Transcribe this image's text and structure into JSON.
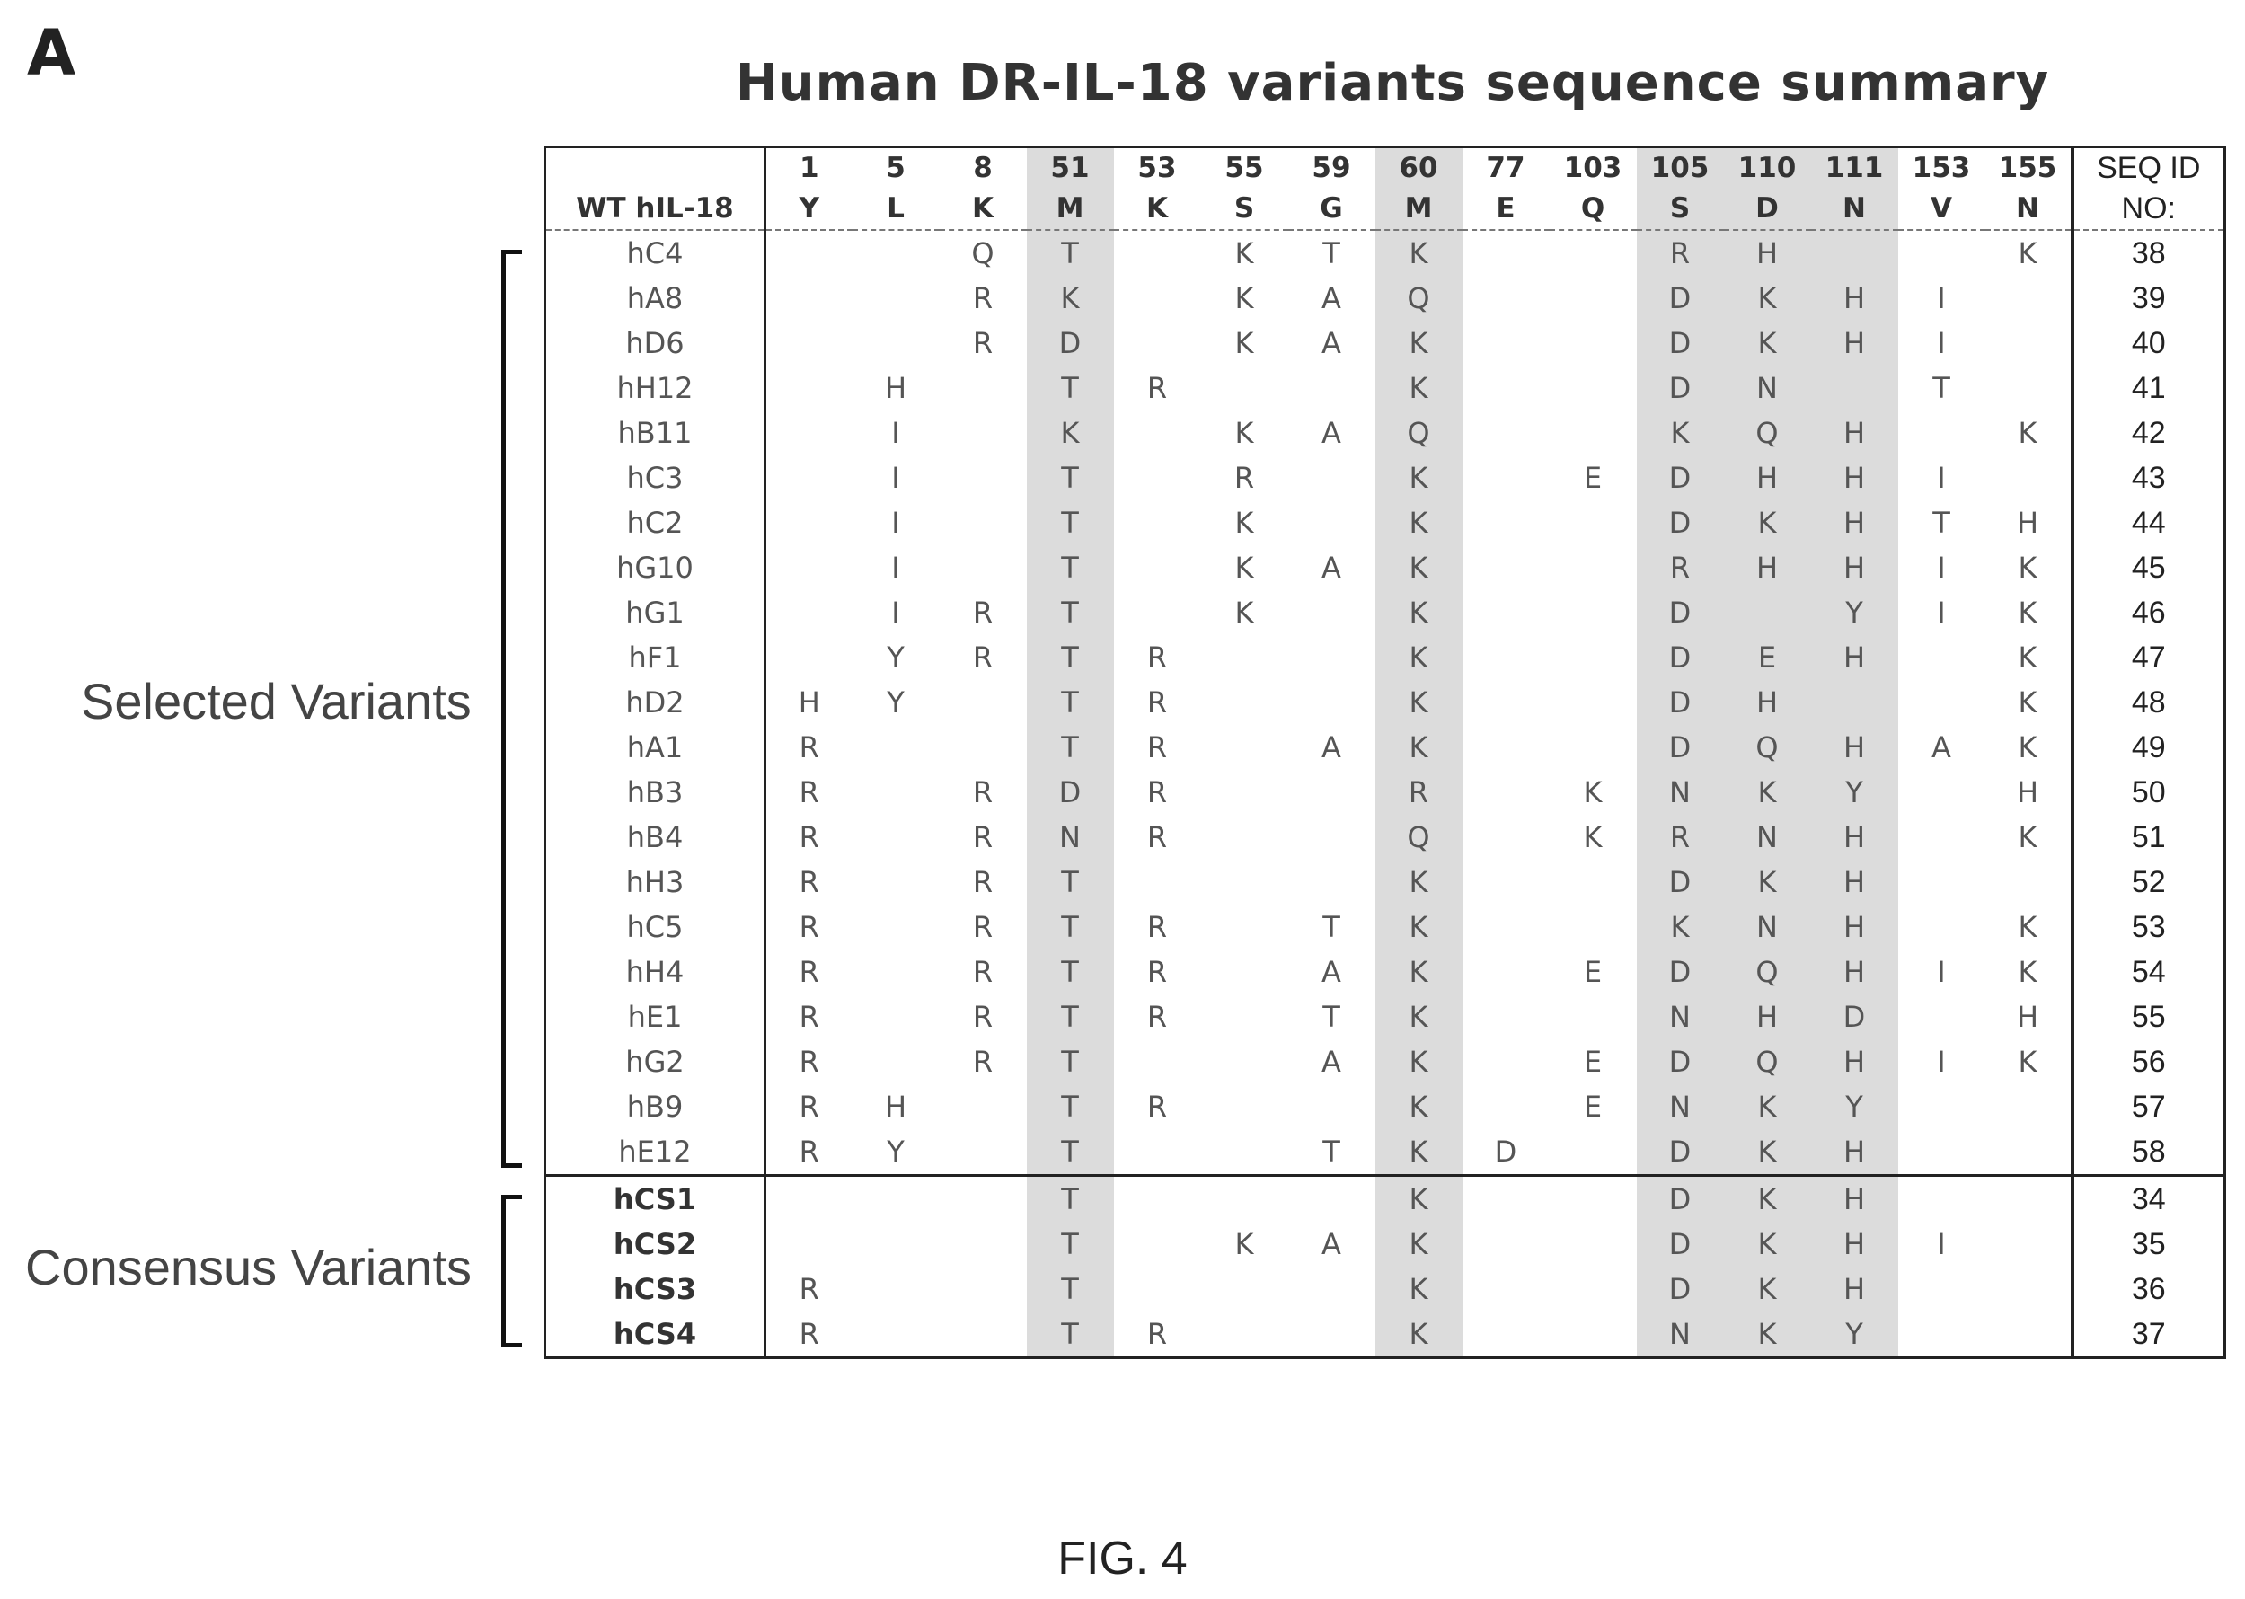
{
  "panel_label": "A",
  "title": "Human DR-IL-18 variants sequence summary",
  "wt_label": "WT hIL-18",
  "seq_id_header": [
    "SEQ ID",
    "NO:"
  ],
  "columns": [
    {
      "pos": "1",
      "wt": "Y",
      "shaded": false
    },
    {
      "pos": "5",
      "wt": "L",
      "shaded": false
    },
    {
      "pos": "8",
      "wt": "K",
      "shaded": false
    },
    {
      "pos": "51",
      "wt": "M",
      "shaded": true
    },
    {
      "pos": "53",
      "wt": "K",
      "shaded": false
    },
    {
      "pos": "55",
      "wt": "S",
      "shaded": false
    },
    {
      "pos": "59",
      "wt": "G",
      "shaded": false
    },
    {
      "pos": "60",
      "wt": "M",
      "shaded": true
    },
    {
      "pos": "77",
      "wt": "E",
      "shaded": false
    },
    {
      "pos": "103",
      "wt": "Q",
      "shaded": false
    },
    {
      "pos": "105",
      "wt": "S",
      "shaded": true
    },
    {
      "pos": "110",
      "wt": "D",
      "shaded": true
    },
    {
      "pos": "111",
      "wt": "N",
      "shaded": true
    },
    {
      "pos": "153",
      "wt": "V",
      "shaded": false
    },
    {
      "pos": "155",
      "wt": "N",
      "shaded": false
    }
  ],
  "groups": [
    {
      "label": "Selected Variants",
      "type": "selected"
    },
    {
      "label": "Consensus Variants",
      "type": "consensus"
    }
  ],
  "rows": [
    {
      "name": "hC4",
      "group": "selected",
      "seq_id": "38",
      "cells": [
        "",
        "",
        "Q",
        "T",
        "",
        "K",
        "T",
        "K",
        "",
        "",
        "R",
        "H",
        "",
        "",
        "K"
      ]
    },
    {
      "name": "hA8",
      "group": "selected",
      "seq_id": "39",
      "cells": [
        "",
        "",
        "R",
        "K",
        "",
        "K",
        "A",
        "Q",
        "",
        "",
        "D",
        "K",
        "H",
        "I",
        ""
      ]
    },
    {
      "name": "hD6",
      "group": "selected",
      "seq_id": "40",
      "cells": [
        "",
        "",
        "R",
        "D",
        "",
        "K",
        "A",
        "K",
        "",
        "",
        "D",
        "K",
        "H",
        "I",
        ""
      ]
    },
    {
      "name": "hH12",
      "group": "selected",
      "seq_id": "41",
      "cells": [
        "",
        "H",
        "",
        "T",
        "R",
        "",
        "",
        "K",
        "",
        "",
        "D",
        "N",
        "",
        "T",
        ""
      ]
    },
    {
      "name": "hB11",
      "group": "selected",
      "seq_id": "42",
      "cells": [
        "",
        "I",
        "",
        "K",
        "",
        "K",
        "A",
        "Q",
        "",
        "",
        "K",
        "Q",
        "H",
        "",
        "K"
      ]
    },
    {
      "name": "hC3",
      "group": "selected",
      "seq_id": "43",
      "cells": [
        "",
        "I",
        "",
        "T",
        "",
        "R",
        "",
        "K",
        "",
        "E",
        "D",
        "H",
        "H",
        "I",
        ""
      ]
    },
    {
      "name": "hC2",
      "group": "selected",
      "seq_id": "44",
      "cells": [
        "",
        "I",
        "",
        "T",
        "",
        "K",
        "",
        "K",
        "",
        "",
        "D",
        "K",
        "H",
        "T",
        "H"
      ]
    },
    {
      "name": "hG10",
      "group": "selected",
      "seq_id": "45",
      "cells": [
        "",
        "I",
        "",
        "T",
        "",
        "K",
        "A",
        "K",
        "",
        "",
        "R",
        "H",
        "H",
        "I",
        "K"
      ]
    },
    {
      "name": "hG1",
      "group": "selected",
      "seq_id": "46",
      "cells": [
        "",
        "I",
        "R",
        "T",
        "",
        "K",
        "",
        "K",
        "",
        "",
        "D",
        "",
        "Y",
        "I",
        "K"
      ]
    },
    {
      "name": "hF1",
      "group": "selected",
      "seq_id": "47",
      "cells": [
        "",
        "Y",
        "R",
        "T",
        "R",
        "",
        "",
        "K",
        "",
        "",
        "D",
        "E",
        "H",
        "",
        "K"
      ]
    },
    {
      "name": "hD2",
      "group": "selected",
      "seq_id": "48",
      "cells": [
        "H",
        "Y",
        "",
        "T",
        "R",
        "",
        "",
        "K",
        "",
        "",
        "D",
        "H",
        "",
        "",
        "K"
      ]
    },
    {
      "name": "hA1",
      "group": "selected",
      "seq_id": "49",
      "cells": [
        "R",
        "",
        "",
        "T",
        "R",
        "",
        "A",
        "K",
        "",
        "",
        "D",
        "Q",
        "H",
        "A",
        "K"
      ]
    },
    {
      "name": "hB3",
      "group": "selected",
      "seq_id": "50",
      "cells": [
        "R",
        "",
        "R",
        "D",
        "R",
        "",
        "",
        "R",
        "",
        "K",
        "N",
        "K",
        "Y",
        "",
        "H"
      ]
    },
    {
      "name": "hB4",
      "group": "selected",
      "seq_id": "51",
      "cells": [
        "R",
        "",
        "R",
        "N",
        "R",
        "",
        "",
        "Q",
        "",
        "K",
        "R",
        "N",
        "H",
        "",
        "K"
      ]
    },
    {
      "name": "hH3",
      "group": "selected",
      "seq_id": "52",
      "cells": [
        "R",
        "",
        "R",
        "T",
        "",
        "",
        "",
        "K",
        "",
        "",
        "D",
        "K",
        "H",
        "",
        ""
      ]
    },
    {
      "name": "hC5",
      "group": "selected",
      "seq_id": "53",
      "cells": [
        "R",
        "",
        "R",
        "T",
        "R",
        "",
        "T",
        "K",
        "",
        "",
        "K",
        "N",
        "H",
        "",
        "K"
      ]
    },
    {
      "name": "hH4",
      "group": "selected",
      "seq_id": "54",
      "cells": [
        "R",
        "",
        "R",
        "T",
        "R",
        "",
        "A",
        "K",
        "",
        "E",
        "D",
        "Q",
        "H",
        "I",
        "K"
      ]
    },
    {
      "name": "hE1",
      "group": "selected",
      "seq_id": "55",
      "cells": [
        "R",
        "",
        "R",
        "T",
        "R",
        "",
        "T",
        "K",
        "",
        "",
        "N",
        "H",
        "D",
        "",
        "H"
      ]
    },
    {
      "name": "hG2",
      "group": "selected",
      "seq_id": "56",
      "cells": [
        "R",
        "",
        "R",
        "T",
        "",
        "",
        "A",
        "K",
        "",
        "E",
        "D",
        "Q",
        "H",
        "I",
        "K"
      ]
    },
    {
      "name": "hB9",
      "group": "selected",
      "seq_id": "57",
      "cells": [
        "R",
        "H",
        "",
        "T",
        "R",
        "",
        "",
        "K",
        "",
        "E",
        "N",
        "K",
        "Y",
        "",
        ""
      ]
    },
    {
      "name": "hE12",
      "group": "selected",
      "seq_id": "58",
      "cells": [
        "R",
        "Y",
        "",
        "T",
        "",
        "",
        "T",
        "K",
        "D",
        "",
        "D",
        "K",
        "H",
        "",
        ""
      ]
    },
    {
      "name": "hCS1",
      "group": "consensus",
      "seq_id": "34",
      "cells": [
        "",
        "",
        "",
        "T",
        "",
        "",
        "",
        "K",
        "",
        "",
        "D",
        "K",
        "H",
        "",
        ""
      ]
    },
    {
      "name": "hCS2",
      "group": "consensus",
      "seq_id": "35",
      "cells": [
        "",
        "",
        "",
        "T",
        "",
        "K",
        "A",
        "K",
        "",
        "",
        "D",
        "K",
        "H",
        "I",
        ""
      ]
    },
    {
      "name": "hCS3",
      "group": "consensus",
      "seq_id": "36",
      "cells": [
        "R",
        "",
        "",
        "T",
        "",
        "",
        "",
        "K",
        "",
        "",
        "D",
        "K",
        "H",
        "",
        ""
      ]
    },
    {
      "name": "hCS4",
      "group": "consensus",
      "seq_id": "37",
      "cells": [
        "R",
        "",
        "",
        "T",
        "R",
        "",
        "",
        "K",
        "",
        "",
        "N",
        "K",
        "Y",
        "",
        ""
      ]
    }
  ],
  "figure_caption": "FIG. 4"
}
